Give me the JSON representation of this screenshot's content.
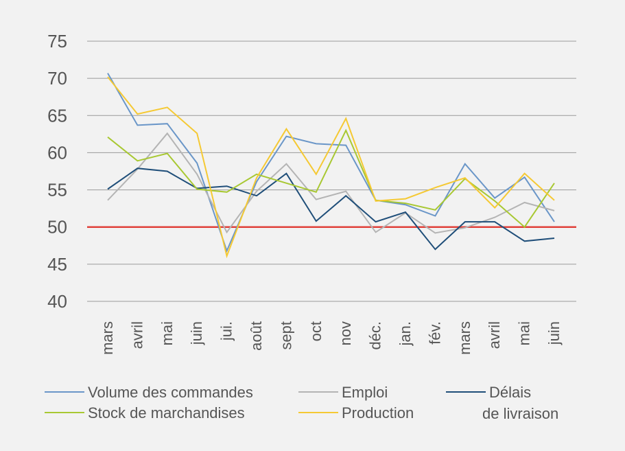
{
  "chart_data": {
    "type": "line",
    "title": "",
    "xlabel": "",
    "ylabel": "",
    "ylim": [
      40,
      75
    ],
    "yticks": [
      40,
      45,
      50,
      55,
      60,
      65,
      70,
      75
    ],
    "grid": true,
    "legend_position": "bottom",
    "categories": [
      "mars",
      "avril",
      "mai",
      "juin",
      "jui.",
      "août",
      "sept",
      "oct",
      "nov",
      "déc.",
      "jan.",
      "fév.",
      "mars",
      "avril",
      "mai",
      "juin"
    ],
    "reference_line": {
      "y": 50,
      "color": "#e0413a"
    },
    "series": [
      {
        "name": "Volume des commandes",
        "color": "#6a96c8",
        "values": [
          70.7,
          63.7,
          63.9,
          58.6,
          46.8,
          56.1,
          62.2,
          61.2,
          61.0,
          53.6,
          53.0,
          51.5,
          58.5,
          53.9,
          56.7,
          50.7
        ]
      },
      {
        "name": "Emploi",
        "color": "#b4b4b4",
        "values": [
          53.6,
          57.8,
          62.6,
          57.1,
          49.3,
          54.8,
          58.5,
          53.7,
          54.8,
          49.3,
          51.9,
          49.2,
          49.9,
          51.3,
          53.3,
          52.2
        ]
      },
      {
        "name": "Délais de livraison",
        "label_lines": [
          "Délais",
          "de livraison"
        ],
        "color": "#1f4e79",
        "values": [
          55.1,
          57.9,
          57.5,
          55.2,
          55.5,
          54.2,
          57.2,
          50.8,
          54.2,
          50.7,
          52.0,
          47.0,
          50.7,
          50.7,
          48.1,
          48.5
        ]
      },
      {
        "name": "Stock de marchandises",
        "color": "#a8c832",
        "values": [
          62.1,
          58.9,
          59.9,
          55.1,
          54.7,
          57.1,
          55.9,
          54.7,
          63.0,
          53.6,
          53.2,
          52.3,
          56.5,
          53.5,
          50.0,
          55.9
        ]
      },
      {
        "name": "Production",
        "color": "#f5c933",
        "values": [
          70.2,
          65.2,
          66.1,
          62.6,
          46.1,
          56.6,
          63.2,
          57.1,
          64.6,
          53.5,
          53.8,
          55.3,
          56.6,
          52.6,
          57.2,
          53.6
        ]
      }
    ]
  }
}
